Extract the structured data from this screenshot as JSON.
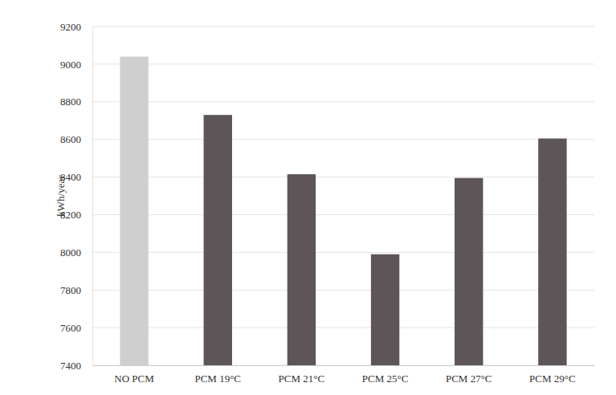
{
  "chart_data": {
    "type": "bar",
    "y_label": "kWh/year",
    "categories": [
      "NO PCM",
      "PCM 19°C",
      "PCM 21°C",
      "PCM 25°C",
      "PCM 27°C",
      "PCM 29°C"
    ],
    "values": [
      9040,
      8730,
      8415,
      7990,
      8395,
      8605
    ],
    "colors": [
      "#cfcfcf",
      "#5e5558",
      "#5e5558",
      "#5e5558",
      "#5e5558",
      "#5e5558"
    ],
    "ylim": [
      7400,
      9200
    ],
    "yticks": [
      7400,
      7600,
      7800,
      8000,
      8200,
      8400,
      8600,
      8800,
      9000,
      9200
    ],
    "grid": true
  }
}
